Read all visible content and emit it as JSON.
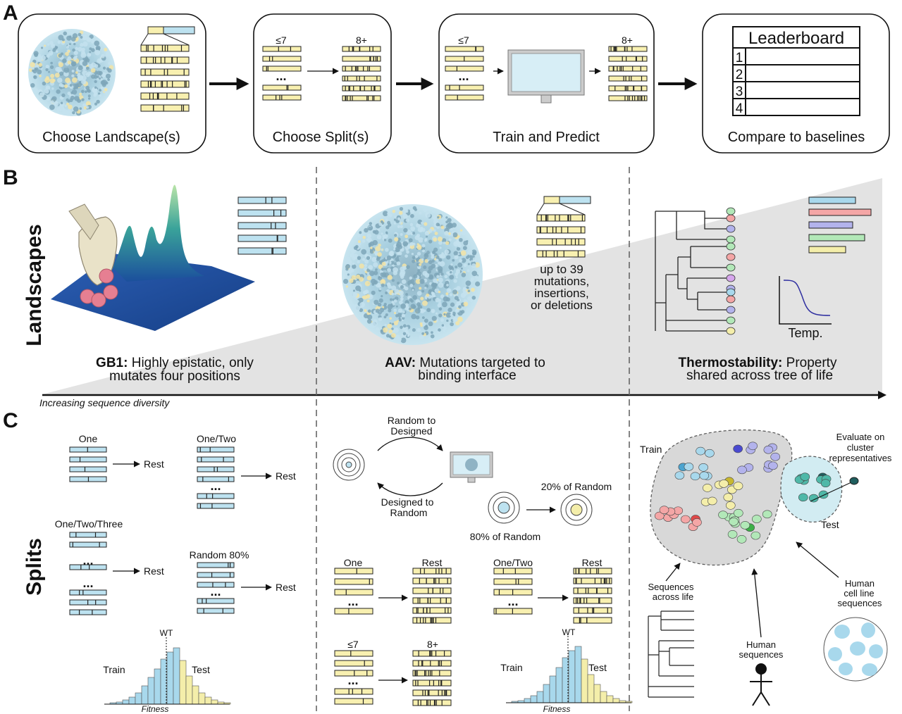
{
  "panels": {
    "a": "A",
    "b": "B",
    "c": "C"
  },
  "steps": [
    {
      "label": "Choose Landscape(s)"
    },
    {
      "label": "Choose Split(s)"
    },
    {
      "label": "Train and Predict"
    },
    {
      "label": "Compare to baselines"
    }
  ],
  "split_labels": {
    "le7": "≤7",
    "ge8": "8+",
    "dots": "..."
  },
  "leaderboard": {
    "title": "Leaderboard",
    "ranks": [
      "1",
      "2",
      "3",
      "4"
    ]
  },
  "landscapes": {
    "side_label": "Landscapes",
    "axis_label": "Increasing sequence diversity",
    "gb1": {
      "name": "GB1:",
      "desc_line1": "Highly epistatic, only",
      "desc_line2": "mutates four positions"
    },
    "aav": {
      "name": "AAV:",
      "desc_line1": "Mutations targeted to",
      "desc_line2": "binding interface",
      "note": [
        "up to 39",
        "mutations,",
        "insertions,",
        "or deletions"
      ]
    },
    "thermo": {
      "name": "Thermostability:",
      "desc_line1": "Property",
      "desc_line2": "shared across tree of life",
      "temp_label": "Temp."
    }
  },
  "splits": {
    "side_label": "Splits",
    "gb1": {
      "one": "One",
      "one_two": "One/Two",
      "one_two_three": "One/Two/Three",
      "random80": "Random 80%",
      "rest": "Rest",
      "hist": {
        "wt": "WT",
        "train": "Train",
        "test": "Test",
        "xlabel": "Fitness"
      }
    },
    "aav": {
      "random_to_designed": [
        "Random to",
        "Designed"
      ],
      "designed_to_random": [
        "Designed to",
        "Random"
      ],
      "pct20": "20% of Random",
      "pct80": "80% of Random",
      "one": "One",
      "one_two": "One/Two",
      "rest": "Rest",
      "le7": "≤7",
      "ge8": "8+",
      "hist": {
        "wt": "WT",
        "train": "Train",
        "test": "Test",
        "xlabel": "Fitness"
      }
    },
    "thermo": {
      "train": "Train",
      "test": "Test",
      "evaluate": [
        "Evaluate on",
        "cluster",
        "representatives"
      ],
      "seq_life": [
        "Sequences",
        "across life"
      ],
      "human": [
        "Human",
        "sequences"
      ],
      "human_cell": [
        "Human",
        "cell line",
        "sequences"
      ]
    }
  },
  "colors": {
    "seq_yellow": "#f8f0b0",
    "seq_blue": "#bde2f0",
    "hist_blue": "#a8d8ec",
    "hist_yellow": "#f4eeaa",
    "gray_wedge": "#e3e3e3",
    "thermo_bars": [
      "#a8d8ec",
      "#f4a6a6",
      "#b3b3ec",
      "#b2e8b8",
      "#f4eeaa"
    ]
  }
}
